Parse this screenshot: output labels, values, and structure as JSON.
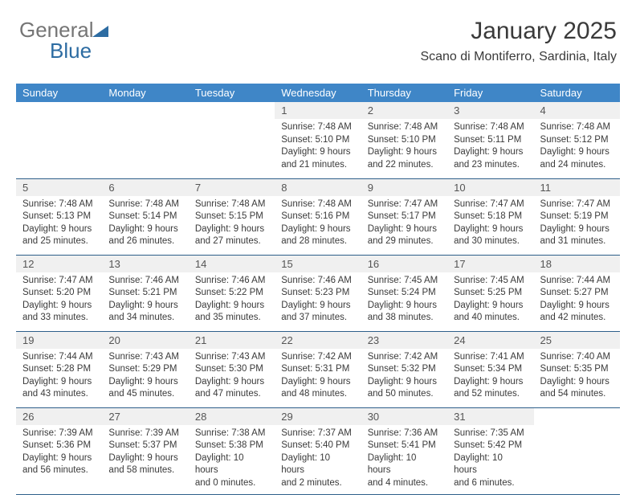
{
  "logo": {
    "text1": "General",
    "text2": "Blue"
  },
  "header": {
    "title": "January 2025",
    "subtitle": "Scano di Montiferro, Sardinia, Italy"
  },
  "colors": {
    "header_bg": "#3f86c7",
    "header_fg": "#ffffff",
    "daynum_bg": "#f0f0f0",
    "row_border": "#2e5f8a",
    "text": "#3a3a3a",
    "logo_gray": "#757575",
    "logo_blue": "#2d6ca2"
  },
  "dayNames": [
    "Sunday",
    "Monday",
    "Tuesday",
    "Wednesday",
    "Thursday",
    "Friday",
    "Saturday"
  ],
  "weeks": [
    [
      {
        "n": "",
        "lines": []
      },
      {
        "n": "",
        "lines": []
      },
      {
        "n": "",
        "lines": []
      },
      {
        "n": "1",
        "lines": [
          "Sunrise: 7:48 AM",
          "Sunset: 5:10 PM",
          "Daylight: 9 hours",
          "and 21 minutes."
        ]
      },
      {
        "n": "2",
        "lines": [
          "Sunrise: 7:48 AM",
          "Sunset: 5:10 PM",
          "Daylight: 9 hours",
          "and 22 minutes."
        ]
      },
      {
        "n": "3",
        "lines": [
          "Sunrise: 7:48 AM",
          "Sunset: 5:11 PM",
          "Daylight: 9 hours",
          "and 23 minutes."
        ]
      },
      {
        "n": "4",
        "lines": [
          "Sunrise: 7:48 AM",
          "Sunset: 5:12 PM",
          "Daylight: 9 hours",
          "and 24 minutes."
        ]
      }
    ],
    [
      {
        "n": "5",
        "lines": [
          "Sunrise: 7:48 AM",
          "Sunset: 5:13 PM",
          "Daylight: 9 hours",
          "and 25 minutes."
        ]
      },
      {
        "n": "6",
        "lines": [
          "Sunrise: 7:48 AM",
          "Sunset: 5:14 PM",
          "Daylight: 9 hours",
          "and 26 minutes."
        ]
      },
      {
        "n": "7",
        "lines": [
          "Sunrise: 7:48 AM",
          "Sunset: 5:15 PM",
          "Daylight: 9 hours",
          "and 27 minutes."
        ]
      },
      {
        "n": "8",
        "lines": [
          "Sunrise: 7:48 AM",
          "Sunset: 5:16 PM",
          "Daylight: 9 hours",
          "and 28 minutes."
        ]
      },
      {
        "n": "9",
        "lines": [
          "Sunrise: 7:47 AM",
          "Sunset: 5:17 PM",
          "Daylight: 9 hours",
          "and 29 minutes."
        ]
      },
      {
        "n": "10",
        "lines": [
          "Sunrise: 7:47 AM",
          "Sunset: 5:18 PM",
          "Daylight: 9 hours",
          "and 30 minutes."
        ]
      },
      {
        "n": "11",
        "lines": [
          "Sunrise: 7:47 AM",
          "Sunset: 5:19 PM",
          "Daylight: 9 hours",
          "and 31 minutes."
        ]
      }
    ],
    [
      {
        "n": "12",
        "lines": [
          "Sunrise: 7:47 AM",
          "Sunset: 5:20 PM",
          "Daylight: 9 hours",
          "and 33 minutes."
        ]
      },
      {
        "n": "13",
        "lines": [
          "Sunrise: 7:46 AM",
          "Sunset: 5:21 PM",
          "Daylight: 9 hours",
          "and 34 minutes."
        ]
      },
      {
        "n": "14",
        "lines": [
          "Sunrise: 7:46 AM",
          "Sunset: 5:22 PM",
          "Daylight: 9 hours",
          "and 35 minutes."
        ]
      },
      {
        "n": "15",
        "lines": [
          "Sunrise: 7:46 AM",
          "Sunset: 5:23 PM",
          "Daylight: 9 hours",
          "and 37 minutes."
        ]
      },
      {
        "n": "16",
        "lines": [
          "Sunrise: 7:45 AM",
          "Sunset: 5:24 PM",
          "Daylight: 9 hours",
          "and 38 minutes."
        ]
      },
      {
        "n": "17",
        "lines": [
          "Sunrise: 7:45 AM",
          "Sunset: 5:25 PM",
          "Daylight: 9 hours",
          "and 40 minutes."
        ]
      },
      {
        "n": "18",
        "lines": [
          "Sunrise: 7:44 AM",
          "Sunset: 5:27 PM",
          "Daylight: 9 hours",
          "and 42 minutes."
        ]
      }
    ],
    [
      {
        "n": "19",
        "lines": [
          "Sunrise: 7:44 AM",
          "Sunset: 5:28 PM",
          "Daylight: 9 hours",
          "and 43 minutes."
        ]
      },
      {
        "n": "20",
        "lines": [
          "Sunrise: 7:43 AM",
          "Sunset: 5:29 PM",
          "Daylight: 9 hours",
          "and 45 minutes."
        ]
      },
      {
        "n": "21",
        "lines": [
          "Sunrise: 7:43 AM",
          "Sunset: 5:30 PM",
          "Daylight: 9 hours",
          "and 47 minutes."
        ]
      },
      {
        "n": "22",
        "lines": [
          "Sunrise: 7:42 AM",
          "Sunset: 5:31 PM",
          "Daylight: 9 hours",
          "and 48 minutes."
        ]
      },
      {
        "n": "23",
        "lines": [
          "Sunrise: 7:42 AM",
          "Sunset: 5:32 PM",
          "Daylight: 9 hours",
          "and 50 minutes."
        ]
      },
      {
        "n": "24",
        "lines": [
          "Sunrise: 7:41 AM",
          "Sunset: 5:34 PM",
          "Daylight: 9 hours",
          "and 52 minutes."
        ]
      },
      {
        "n": "25",
        "lines": [
          "Sunrise: 7:40 AM",
          "Sunset: 5:35 PM",
          "Daylight: 9 hours",
          "and 54 minutes."
        ]
      }
    ],
    [
      {
        "n": "26",
        "lines": [
          "Sunrise: 7:39 AM",
          "Sunset: 5:36 PM",
          "Daylight: 9 hours",
          "and 56 minutes."
        ]
      },
      {
        "n": "27",
        "lines": [
          "Sunrise: 7:39 AM",
          "Sunset: 5:37 PM",
          "Daylight: 9 hours",
          "and 58 minutes."
        ]
      },
      {
        "n": "28",
        "lines": [
          "Sunrise: 7:38 AM",
          "Sunset: 5:38 PM",
          "Daylight: 10 hours",
          "and 0 minutes."
        ]
      },
      {
        "n": "29",
        "lines": [
          "Sunrise: 7:37 AM",
          "Sunset: 5:40 PM",
          "Daylight: 10 hours",
          "and 2 minutes."
        ]
      },
      {
        "n": "30",
        "lines": [
          "Sunrise: 7:36 AM",
          "Sunset: 5:41 PM",
          "Daylight: 10 hours",
          "and 4 minutes."
        ]
      },
      {
        "n": "31",
        "lines": [
          "Sunrise: 7:35 AM",
          "Sunset: 5:42 PM",
          "Daylight: 10 hours",
          "and 6 minutes."
        ]
      },
      {
        "n": "",
        "lines": []
      }
    ]
  ]
}
